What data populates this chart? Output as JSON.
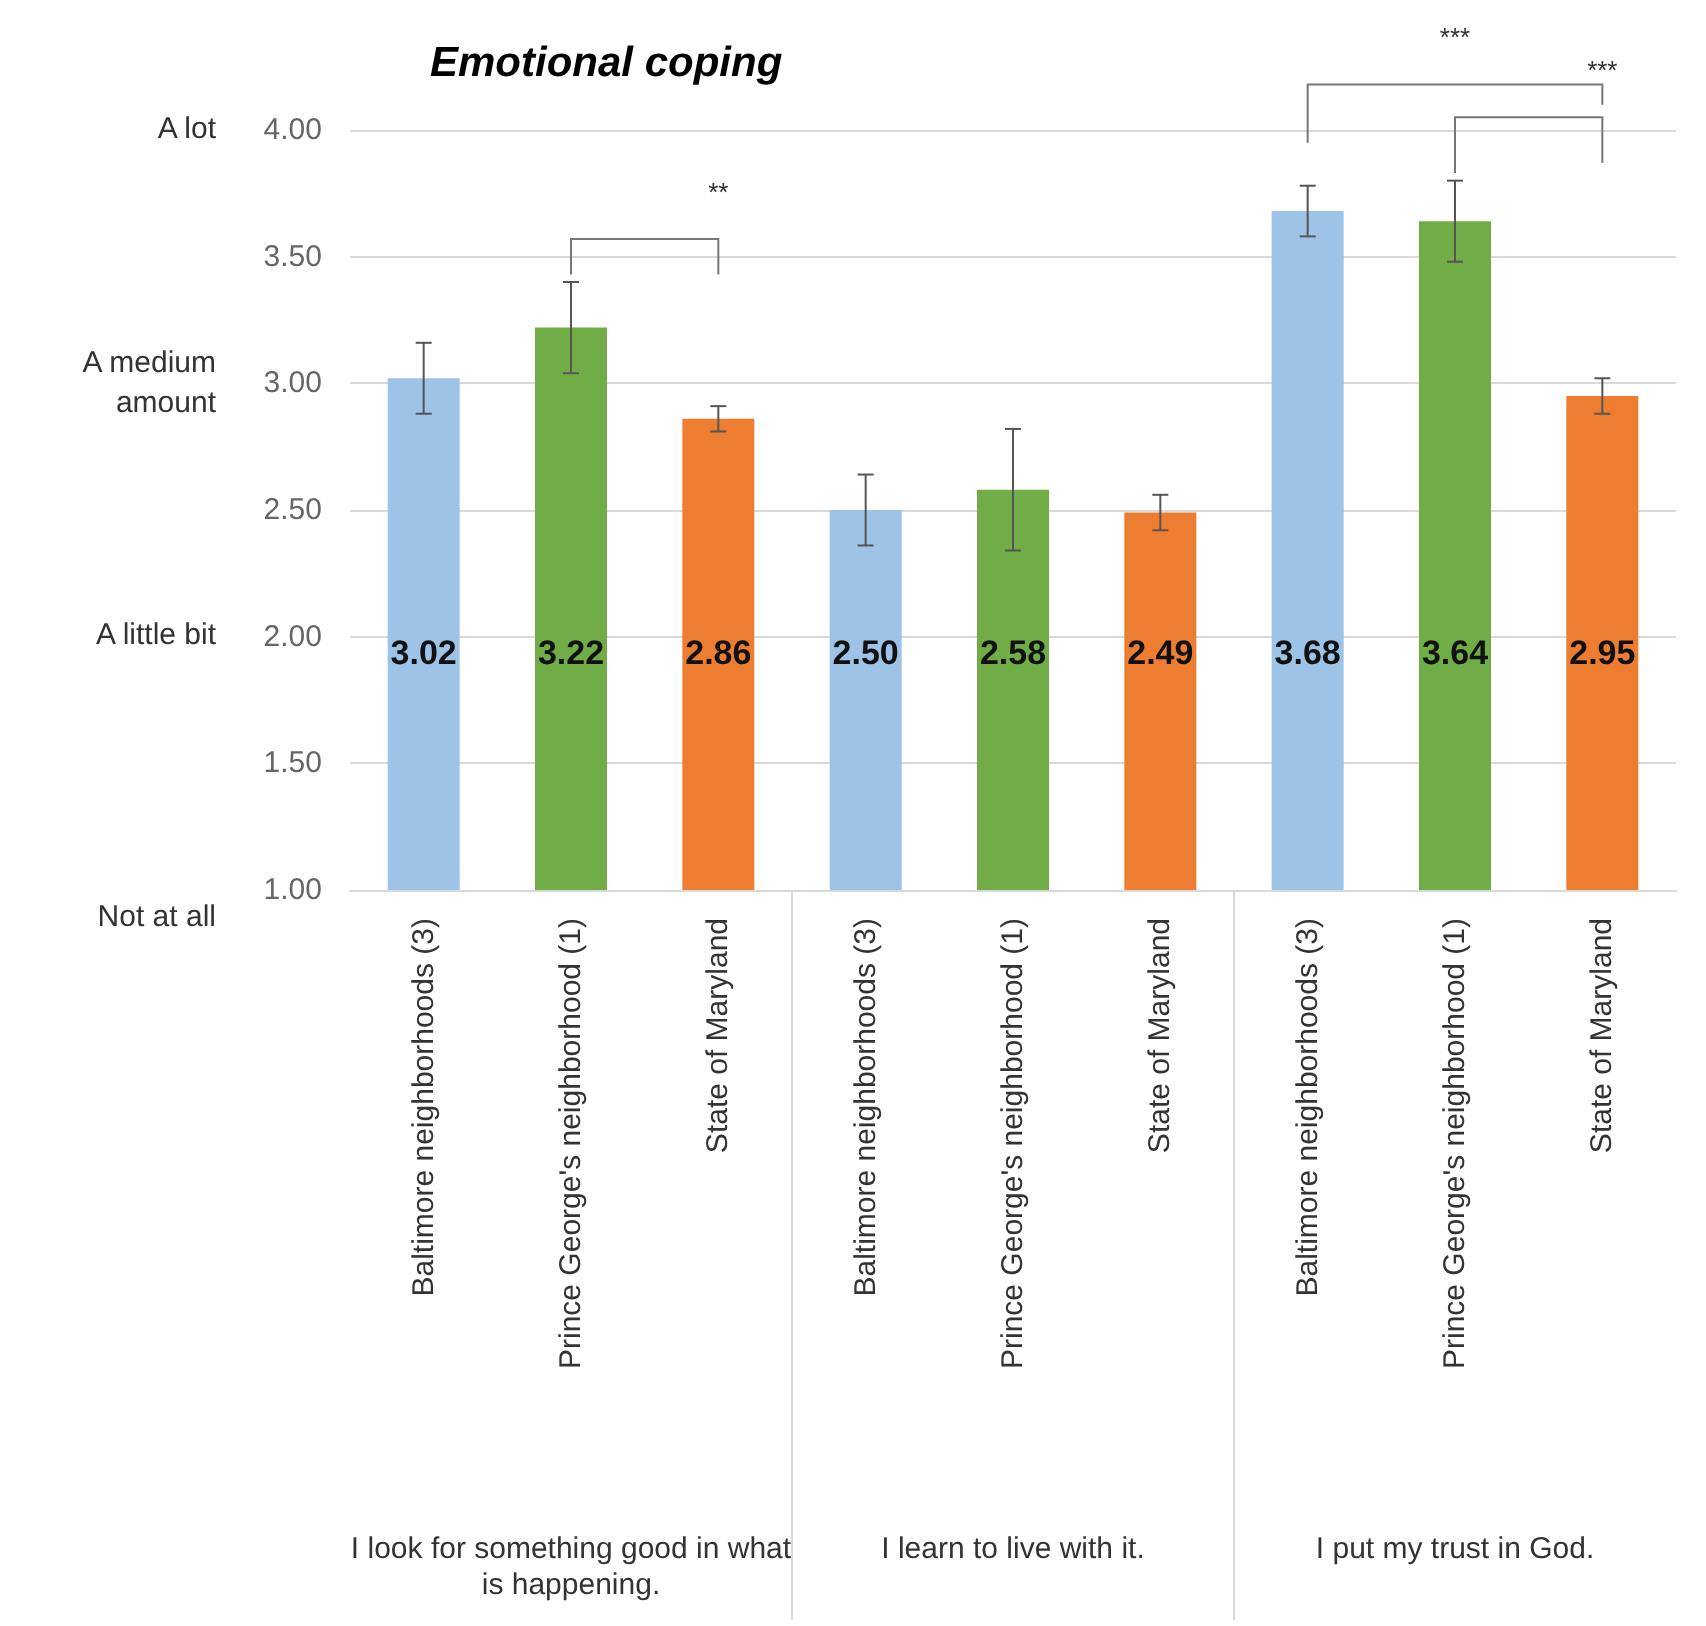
{
  "chart_data": {
    "type": "bar",
    "title": "Emotional coping",
    "categories": [
      "Baltimore neighborhoods (3)",
      "Prince George's neighborhood (1)",
      "State of Maryland",
      "Baltimore neighborhoods (3)",
      "Prince George's neighborhood (1)",
      "State of Maryland",
      "Baltimore neighborhoods (3)",
      "Prince George's neighborhood (1)",
      "State of Maryland"
    ],
    "values": [
      3.02,
      3.22,
      2.86,
      2.5,
      2.58,
      2.49,
      3.68,
      3.64,
      2.95
    ],
    "colors": [
      "#9dc3e6",
      "#70ad47",
      "#ed7d31",
      "#9dc3e6",
      "#70ad47",
      "#ed7d31",
      "#9dc3e6",
      "#70ad47",
      "#ed7d31"
    ],
    "errors": [
      0.14,
      0.18,
      0.05,
      0.14,
      0.24,
      0.07,
      0.1,
      0.16,
      0.07
    ],
    "value_labels": [
      "3.02",
      "3.22",
      "2.86",
      "2.50",
      "2.58",
      "2.49",
      "3.68",
      "3.64",
      "2.95"
    ],
    "ylim": [
      1,
      4
    ],
    "yticks": [
      {
        "value": 1,
        "label": "1.00"
      },
      {
        "value": 1.5,
        "label": "1.50"
      },
      {
        "value": 2,
        "label": "2.00"
      },
      {
        "value": 2.5,
        "label": "2.50"
      },
      {
        "value": 3,
        "label": "3.00"
      },
      {
        "value": 3.5,
        "label": "3.50"
      },
      {
        "value": 4,
        "label": "4.00"
      }
    ],
    "grid": "y",
    "annotations": [
      "**",
      "***",
      "***",
      "I look for something good in what is happening.",
      "I learn to live with it.",
      "I put my trust in God.",
      "A lot",
      "A medium amount",
      "A little bit",
      "Not at all"
    ]
  }
}
